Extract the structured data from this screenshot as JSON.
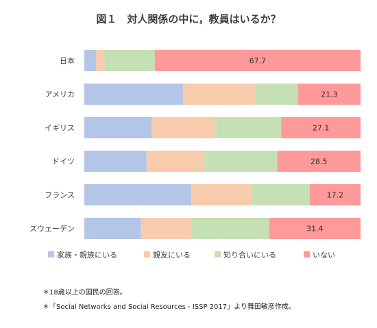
{
  "chart_data": {
    "type": "bar",
    "orientation": "horizontal",
    "stacked": "percent",
    "title": "図１　対人関係の中に，教員はいるか？",
    "categories": [
      "日本",
      "アメリカ",
      "イギリス",
      "ドイツ",
      "フランス",
      "スウェーデン"
    ],
    "series": [
      {
        "name": "家族・親族にいる",
        "color": "#b4c6e7",
        "values": [
          3.9,
          33.6,
          23.0,
          21.3,
          36.2,
          19.5
        ]
      },
      {
        "name": "親友にいる",
        "color": "#f8cbad",
        "values": [
          2.7,
          24.4,
          22.0,
          19.8,
          20.3,
          17.2
        ]
      },
      {
        "name": "知り合いにいる",
        "color": "#c5e0b4",
        "values": [
          16.6,
          14.7,
          22.2,
          25.0,
          19.7,
          26.8
        ]
      },
      {
        "name": "いない",
        "color": "#ff999a",
        "values": [
          67.7,
          21.3,
          27.1,
          28.5,
          17.2,
          31.4
        ]
      }
    ],
    "data_labels_series": "いない",
    "xlim": [
      0,
      100
    ],
    "grid": false,
    "legend_position": "bottom",
    "notes": [
      "＊18歳以上の国民の回答。",
      "＊「Social Networks and Social Resources - ISSP 2017」より舞田敏彦作成。"
    ]
  }
}
